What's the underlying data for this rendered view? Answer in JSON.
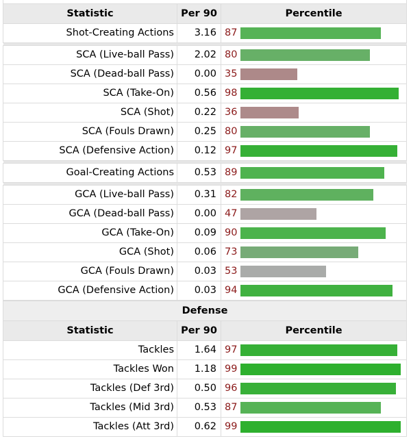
{
  "table1": {
    "headers": [
      "Statistic",
      "Per 90",
      "Percentile"
    ],
    "groups": [
      [
        {
          "stat": "Shot-Creating Actions",
          "per90": "3.16",
          "pct": "87",
          "color": "#56b356"
        }
      ],
      [
        {
          "stat": "SCA (Live-ball Pass)",
          "per90": "2.02",
          "pct": "80",
          "color": "#67b067"
        },
        {
          "stat": "SCA (Dead-ball Pass)",
          "per90": "0.00",
          "pct": "35",
          "color": "#ad8989"
        },
        {
          "stat": "SCA (Take-On)",
          "per90": "0.56",
          "pct": "98",
          "color": "#34b034"
        },
        {
          "stat": "SCA (Shot)",
          "per90": "0.22",
          "pct": "36",
          "color": "#ad8a8a"
        },
        {
          "stat": "SCA (Fouls Drawn)",
          "per90": "0.25",
          "pct": "80",
          "color": "#67b067"
        },
        {
          "stat": "SCA (Defensive Action)",
          "per90": "0.12",
          "pct": "97",
          "color": "#36b036"
        }
      ],
      [
        {
          "stat": "Goal-Creating Actions",
          "per90": "0.53",
          "pct": "89",
          "color": "#4fb34f"
        }
      ],
      [
        {
          "stat": "GCA (Live-ball Pass)",
          "per90": "0.31",
          "pct": "82",
          "color": "#5fb15f"
        },
        {
          "stat": "GCA (Dead-ball Pass)",
          "per90": "0.00",
          "pct": "47",
          "color": "#aea4a4"
        },
        {
          "stat": "GCA (Take-On)",
          "per90": "0.09",
          "pct": "90",
          "color": "#4cb34c"
        },
        {
          "stat": "GCA (Shot)",
          "per90": "0.06",
          "pct": "73",
          "color": "#77ab77"
        },
        {
          "stat": "GCA (Fouls Drawn)",
          "per90": "0.03",
          "pct": "53",
          "color": "#a9aba9"
        },
        {
          "stat": "GCA (Defensive Action)",
          "per90": "0.03",
          "pct": "94",
          "color": "#40b140"
        }
      ]
    ]
  },
  "section_title": "Defense",
  "table2": {
    "headers": [
      "Statistic",
      "Per 90",
      "Percentile"
    ],
    "rows": [
      {
        "stat": "Tackles",
        "per90": "1.64",
        "pct": "97",
        "color": "#36b036"
      },
      {
        "stat": "Tackles Won",
        "per90": "1.18",
        "pct": "99",
        "color": "#2eb02e"
      },
      {
        "stat": "Tackles (Def 3rd)",
        "per90": "0.50",
        "pct": "96",
        "color": "#38b038"
      },
      {
        "stat": "Tackles (Mid 3rd)",
        "per90": "0.53",
        "pct": "87",
        "color": "#56b356"
      },
      {
        "stat": "Tackles (Att 3rd)",
        "per90": "0.62",
        "pct": "99",
        "color": "#2eb02e"
      }
    ]
  }
}
